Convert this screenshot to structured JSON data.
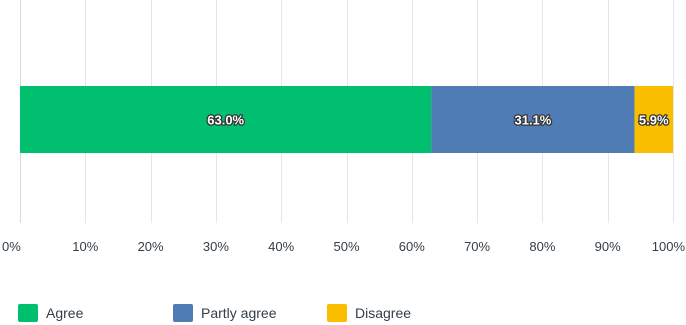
{
  "chart_data": {
    "type": "bar",
    "orientation": "horizontal",
    "stacked": true,
    "categories": [
      ""
    ],
    "series": [
      {
        "name": "Agree",
        "values": [
          63.0
        ],
        "color": "#00bf6f",
        "label": "63.0%"
      },
      {
        "name": "Partly agree",
        "values": [
          31.1
        ],
        "color": "#507cb6",
        "label": "31.1%"
      },
      {
        "name": "Disagree",
        "values": [
          5.9
        ],
        "color": "#f9be00",
        "label": "5.9%"
      }
    ],
    "x_ticks": [
      "0%",
      "10%",
      "20%",
      "30%",
      "40%",
      "50%",
      "60%",
      "70%",
      "80%",
      "90%",
      "100%"
    ],
    "xlim": [
      0,
      100
    ],
    "grid": true,
    "legend_position": "bottom-left"
  }
}
